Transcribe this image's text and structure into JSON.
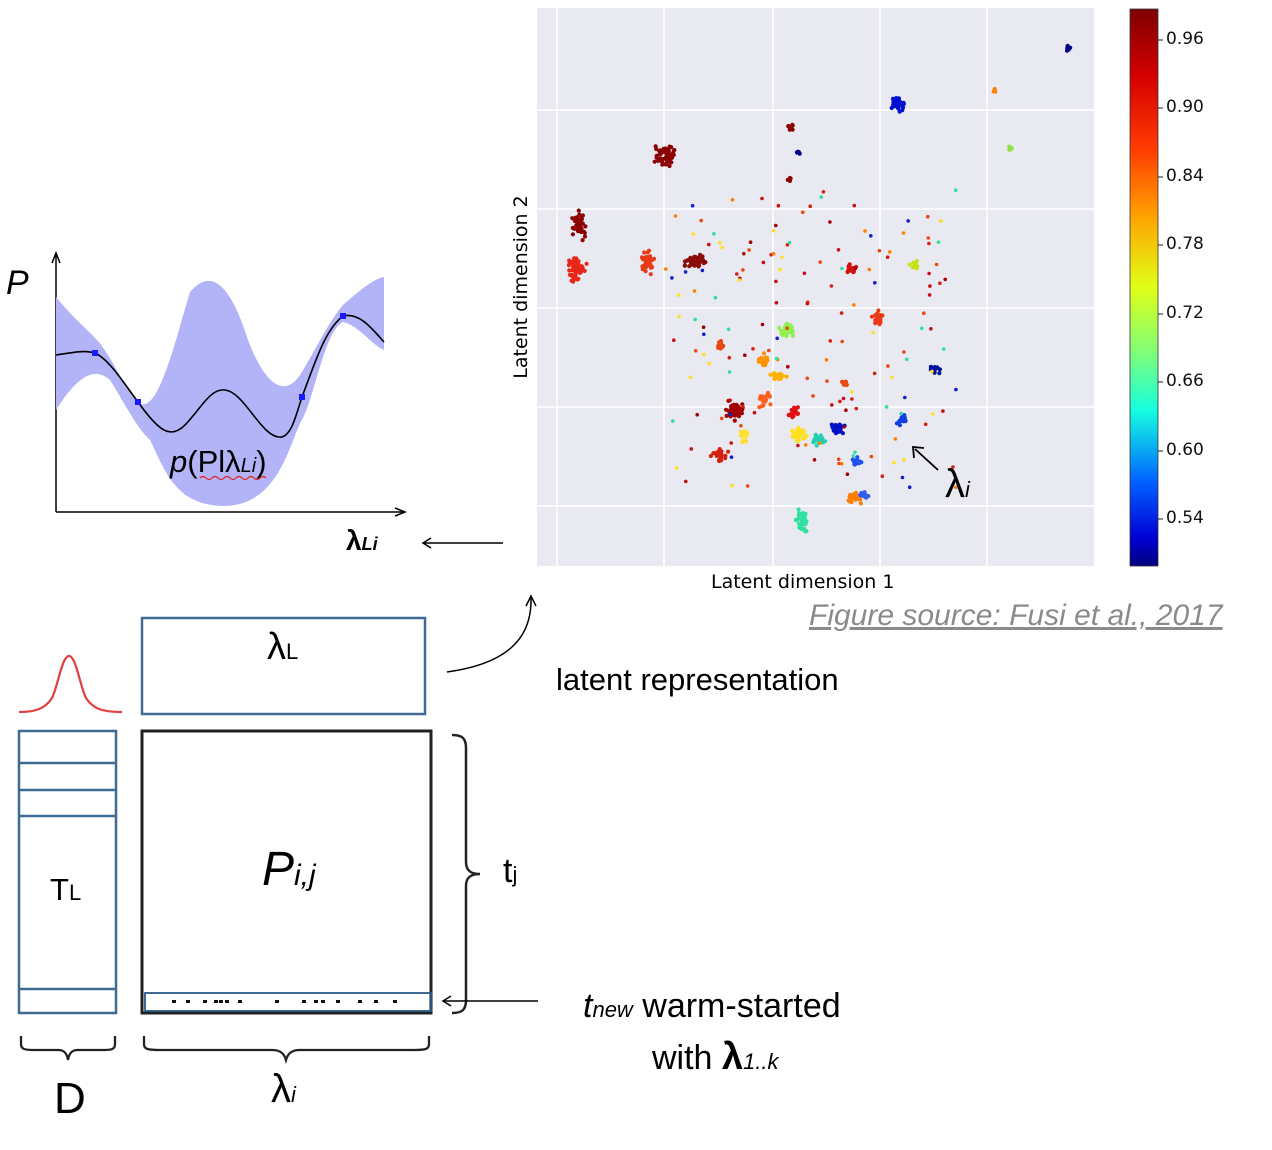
{
  "gp_plot": {
    "y_label": "P",
    "x_label_main": "λ",
    "x_label_sub": "Li",
    "annotation_prefix": "p",
    "annotation_body": "(Pl",
    "annotation_lambda": "λ",
    "annotation_sub": "Li",
    "annotation_suffix": ")"
  },
  "scatter": {
    "x_label": "Latent dimension 1",
    "y_label": "Latent dimension 2",
    "pointer_label": "λ",
    "pointer_sub": "i",
    "colorbar_ticks": [
      "0.96",
      "0.90",
      "0.84",
      "0.78",
      "0.72",
      "0.66",
      "0.60",
      "0.54"
    ],
    "colors": {
      "background": "#e9e9f2",
      "grid": "#ffffff"
    }
  },
  "source_note": "Figure source: Fusi et al., 2017",
  "matrix": {
    "latent_box_label": "λ",
    "latent_box_sub": "L",
    "latent_text": "latent representation",
    "tl_main": "T",
    "tl_sub": "L",
    "pij_main": "P",
    "pij_sub": "i,j",
    "tj_main": "t",
    "tj_sub": "j",
    "d_label": "D",
    "lambda_i_main": "λ",
    "lambda_i_sub": "i",
    "warm_line1_t": "t",
    "warm_line1_sub": "new",
    "warm_line1_rest": " warm-started",
    "warm_line2_prefix": "with ",
    "warm_line2_lambda": "λ",
    "warm_line2_sub": "1..k"
  }
}
